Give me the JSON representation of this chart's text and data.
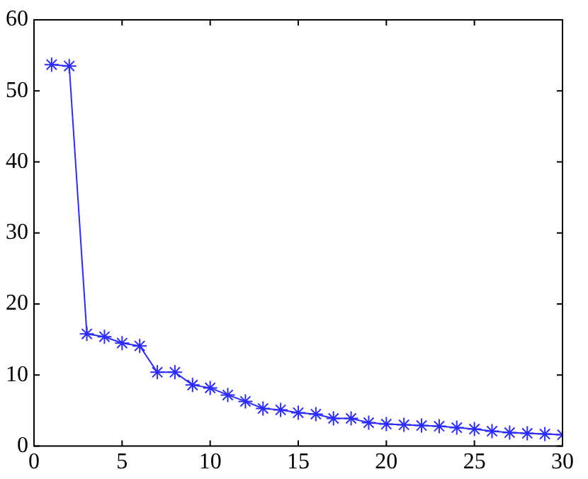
{
  "chart_data": {
    "type": "line",
    "marker": "cross",
    "line_style": "solid",
    "grid": false,
    "legend": false,
    "x": [
      1,
      2,
      3,
      4,
      5,
      6,
      7,
      8,
      9,
      10,
      11,
      12,
      13,
      14,
      15,
      16,
      17,
      18,
      19,
      20,
      21,
      22,
      23,
      24,
      25,
      26,
      27,
      28,
      29,
      30
    ],
    "series": [
      {
        "color": "#2b2bff",
        "values": [
          53.7,
          53.5,
          15.8,
          15.4,
          14.5,
          14.1,
          10.4,
          10.4,
          8.6,
          8.2,
          7.2,
          6.3,
          5.3,
          5.1,
          4.7,
          4.5,
          3.9,
          3.9,
          3.3,
          3.1,
          3.0,
          2.9,
          2.8,
          2.6,
          2.4,
          2.1,
          1.9,
          1.8,
          1.7,
          1.6
        ]
      }
    ],
    "xlim": [
      0,
      30
    ],
    "xticks": [
      0,
      5,
      10,
      15,
      20,
      25,
      30
    ],
    "ylim": [
      0,
      60
    ],
    "yticks": [
      0,
      10,
      20,
      30,
      40,
      50,
      60
    ]
  }
}
